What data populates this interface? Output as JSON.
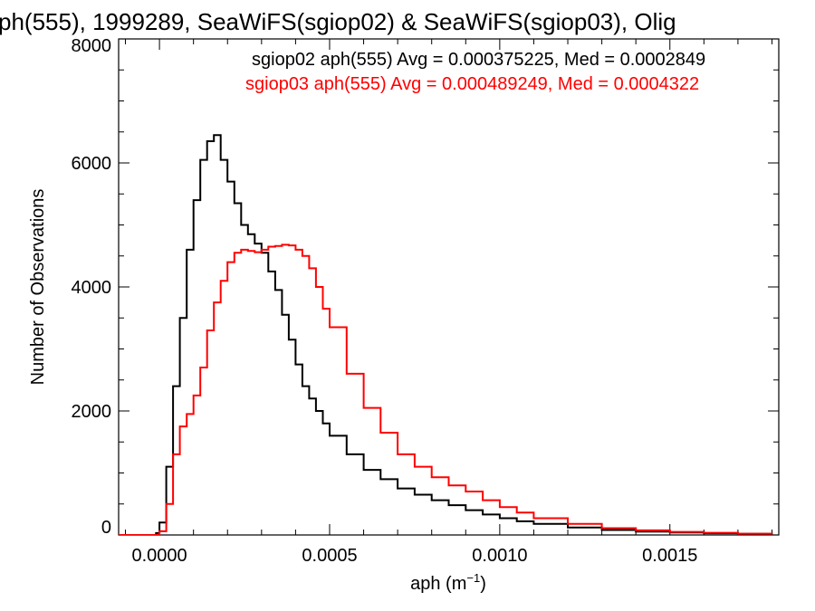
{
  "chart_data": {
    "type": "line",
    "title": "ph(555), 1999289, SeaWiFS(sgiop02) & SeaWiFS(sgiop03), Olig",
    "xlabel_main": "aph (m",
    "xlabel_sup": "−1",
    "xlabel_close": ")",
    "ylabel": "Number of Observations",
    "xlim": [
      -0.00012,
      0.00182
    ],
    "ylim": [
      0,
      8000
    ],
    "xticks": [
      0.0,
      0.0005,
      0.001,
      0.0015
    ],
    "xtick_labels": [
      "0.0000",
      "0.0005",
      "0.0010",
      "0.0015"
    ],
    "yticks": [
      0,
      2000,
      4000,
      6000,
      8000
    ],
    "ytick_labels": [
      "0",
      "2000",
      "4000",
      "6000",
      "8000"
    ],
    "annotations": [
      "sgiop02 aph(555) Avg = 0.000375225, Med = 0.0002849",
      "sgiop03 aph(555) Avg = 0.000489249, Med = 0.0004322"
    ],
    "series": [
      {
        "color": "#000000",
        "x": [
          -0.00012,
          -8e-05,
          -4e-05,
          -1e-05,
          0.0,
          2e-05,
          4e-05,
          6e-05,
          8e-05,
          0.0001,
          0.00012,
          0.00014,
          0.00016,
          0.00018,
          0.0002,
          0.00022,
          0.00024,
          0.00026,
          0.00028,
          0.0003,
          0.00032,
          0.00034,
          0.00036,
          0.00038,
          0.0004,
          0.00042,
          0.00044,
          0.00046,
          0.00048,
          0.0005,
          0.00055,
          0.0006,
          0.00065,
          0.0007,
          0.00075,
          0.0008,
          0.00085,
          0.0009,
          0.00095,
          0.001,
          0.00105,
          0.0011,
          0.0012,
          0.0013,
          0.0014,
          0.0015,
          0.0016,
          0.0017,
          0.0018
        ],
        "y": [
          0,
          0,
          0,
          30,
          200,
          1100,
          2400,
          3500,
          4600,
          5400,
          6050,
          6350,
          6450,
          6050,
          5700,
          5350,
          5000,
          4850,
          4700,
          4550,
          4250,
          3950,
          3550,
          3150,
          2750,
          2400,
          2200,
          2000,
          1800,
          1600,
          1300,
          1050,
          900,
          750,
          650,
          560,
          480,
          400,
          330,
          270,
          220,
          180,
          120,
          80,
          55,
          40,
          28,
          18,
          10
        ]
      },
      {
        "color": "#ff0000",
        "x": [
          -0.00012,
          -8e-05,
          -4e-05,
          -1e-05,
          0.0,
          2e-05,
          4e-05,
          6e-05,
          8e-05,
          0.0001,
          0.00012,
          0.00014,
          0.00016,
          0.00018,
          0.0002,
          0.00022,
          0.00024,
          0.00026,
          0.00028,
          0.0003,
          0.00032,
          0.00034,
          0.00036,
          0.00038,
          0.0004,
          0.00042,
          0.00044,
          0.00046,
          0.00048,
          0.0005,
          0.00055,
          0.0006,
          0.00065,
          0.0007,
          0.00075,
          0.0008,
          0.00085,
          0.0009,
          0.00095,
          0.001,
          0.00105,
          0.0011,
          0.0012,
          0.0013,
          0.0014,
          0.0015,
          0.0016,
          0.0017,
          0.0018
        ],
        "y": [
          0,
          0,
          0,
          0,
          60,
          500,
          1300,
          1750,
          1950,
          2250,
          2700,
          3300,
          3750,
          4100,
          4400,
          4550,
          4600,
          4580,
          4560,
          4600,
          4650,
          4660,
          4680,
          4670,
          4600,
          4500,
          4300,
          4000,
          3650,
          3350,
          2600,
          2050,
          1650,
          1300,
          1100,
          930,
          800,
          700,
          560,
          450,
          360,
          270,
          180,
          110,
          75,
          50,
          35,
          20,
          10
        ]
      }
    ]
  }
}
